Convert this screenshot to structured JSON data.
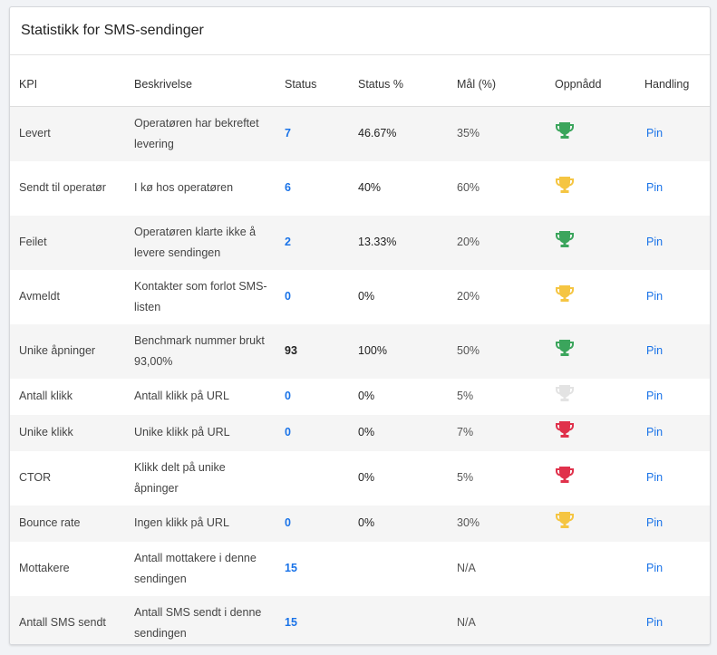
{
  "header": {
    "title": "Statistikk for SMS-sendinger"
  },
  "table": {
    "columns": [
      "KPI",
      "Beskrivelse",
      "Status",
      "Status %",
      "Mål (%)",
      "Oppnådd",
      "Handling"
    ],
    "rows": [
      {
        "kpi": "Levert",
        "description": "Operatøren har bekreftet levering",
        "status": "7",
        "status_color": "#1a73e8",
        "status_pct": "46.67%",
        "goal": "35%",
        "trophy": "#3ba55c",
        "action": "Pin"
      },
      {
        "kpi": "Sendt til operatør",
        "description": "I kø hos operatøren",
        "status": "6",
        "status_color": "#1a73e8",
        "status_pct": "40%",
        "goal": "60%",
        "trophy": "#f5c542",
        "action": "Pin"
      },
      {
        "kpi": "Feilet",
        "description": "Operatøren klarte ikke å levere sendingen",
        "status": "2",
        "status_color": "#1a73e8",
        "status_pct": "13.33%",
        "goal": "20%",
        "trophy": "#3ba55c",
        "action": "Pin"
      },
      {
        "kpi": "Avmeldt",
        "description": "Kontakter som forlot SMS-listen",
        "status": "0",
        "status_color": "#1a73e8",
        "status_pct": "0%",
        "goal": "20%",
        "trophy": "#f5c542",
        "action": "Pin"
      },
      {
        "kpi": "Unike åpninger",
        "description": "Benchmark nummer brukt 93,00%",
        "status": "93",
        "status_color": "#222222",
        "status_pct": "100%",
        "goal": "50%",
        "trophy": "#3ba55c",
        "action": "Pin"
      },
      {
        "kpi": "Antall klikk",
        "description": "Antall klikk på URL",
        "status": "0",
        "status_color": "#1a73e8",
        "status_pct": "0%",
        "goal": "5%",
        "trophy": "#e3e3e3",
        "action": "Pin"
      },
      {
        "kpi": "Unike klikk",
        "description": "Unike klikk på URL",
        "status": "0",
        "status_color": "#1a73e8",
        "status_pct": "0%",
        "goal": "7%",
        "trophy": "#e0314b",
        "action": "Pin"
      },
      {
        "kpi": "CTOR",
        "description": "Klikk delt på unike åpninger",
        "status": null,
        "status_color": null,
        "status_pct": "0%",
        "goal": "5%",
        "trophy": "#e0314b",
        "action": "Pin"
      },
      {
        "kpi": "Bounce rate",
        "description": "Ingen klikk på URL",
        "status": "0",
        "status_color": "#1a73e8",
        "status_pct": "0%",
        "goal": "30%",
        "trophy": "#f5c542",
        "action": "Pin"
      },
      {
        "kpi": "Mottakere",
        "description": "Antall mottakere i denne sendingen",
        "status": "15",
        "status_color": "#1a73e8",
        "status_pct": null,
        "goal": "N/A",
        "trophy": null,
        "action": "Pin"
      },
      {
        "kpi": "Antall SMS sendt",
        "description": "Antall SMS sendt i denne sendingen",
        "status": "15",
        "status_color": "#1a73e8",
        "status_pct": null,
        "goal": "N/A",
        "trophy": null,
        "action": "Pin"
      }
    ]
  }
}
